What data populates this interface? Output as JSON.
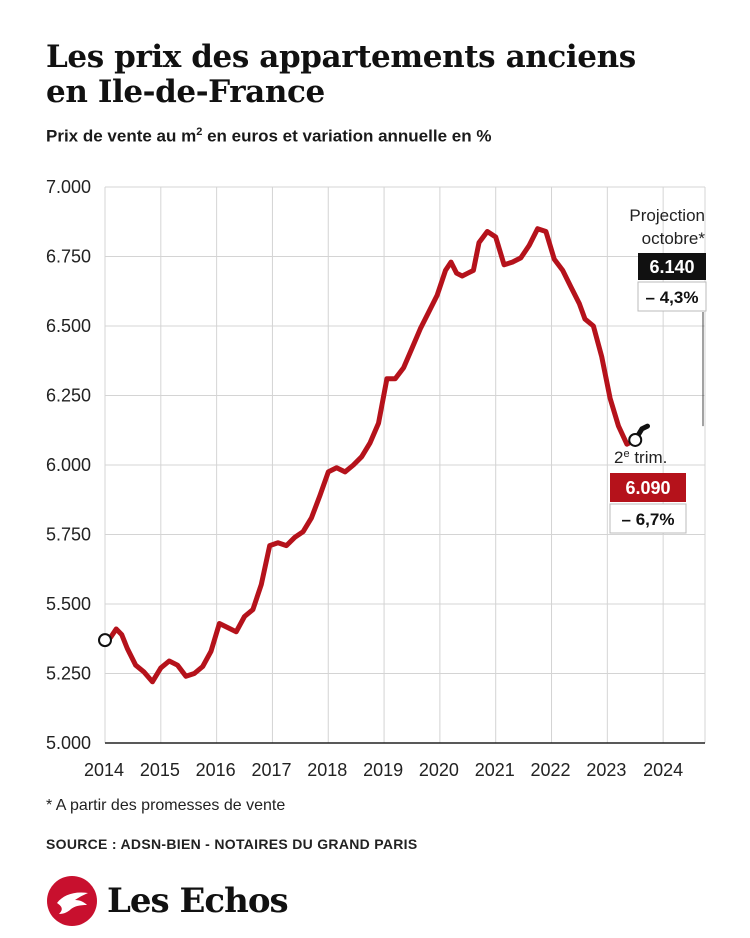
{
  "title_line1": "Les prix des appartements anciens",
  "title_line2": "en Ile-de-France",
  "subtitle_main": "Prix de vente au m",
  "subtitle_sup": "2",
  "subtitle_rest": " en euros et variation annuelle en %",
  "footnote": "* A partir des promesses de vente",
  "source": "SOURCE : ADSN-BIEN - NOTAIRES DU GRAND PARIS",
  "brand": "Les Echos",
  "colors": {
    "line": "#b5121b",
    "grid": "#d4d4d4",
    "axis": "#222222",
    "projection_box": "#111111",
    "current_box": "#b5121b"
  },
  "chart_data": {
    "type": "line",
    "title": "Les prix des appartements anciens en Ile-de-France",
    "subtitle": "Prix de vente au m² en euros et variation annuelle en %",
    "x_ticks": [
      "2014",
      "2015",
      "2016",
      "2017",
      "2018",
      "2019",
      "2020",
      "2021",
      "2022",
      "2023",
      "2024"
    ],
    "y_ticks": [
      "7.000",
      "6.750",
      "6.500",
      "6.250",
      "6.000",
      "5.750",
      "5.500",
      "5.250",
      "5.000"
    ],
    "y_tick_values": [
      7000,
      6750,
      6500,
      6250,
      6000,
      5750,
      5500,
      5250,
      5000
    ],
    "xlim": [
      2014,
      2024.75
    ],
    "ylim": [
      5000,
      7000
    ],
    "grid": true,
    "series": [
      {
        "points": [
          [
            2014.0,
            5370
          ],
          [
            2014.1,
            5380
          ],
          [
            2014.2,
            5410
          ],
          [
            2014.3,
            5390
          ],
          [
            2014.4,
            5340
          ],
          [
            2014.55,
            5280
          ],
          [
            2014.7,
            5255
          ],
          [
            2014.85,
            5220
          ],
          [
            2015.0,
            5270
          ],
          [
            2015.15,
            5295
          ],
          [
            2015.3,
            5280
          ],
          [
            2015.45,
            5240
          ],
          [
            2015.6,
            5250
          ],
          [
            2015.75,
            5275
          ],
          [
            2015.9,
            5330
          ],
          [
            2016.05,
            5430
          ],
          [
            2016.2,
            5415
          ],
          [
            2016.35,
            5400
          ],
          [
            2016.5,
            5455
          ],
          [
            2016.65,
            5480
          ],
          [
            2016.8,
            5570
          ],
          [
            2016.95,
            5710
          ],
          [
            2017.1,
            5720
          ],
          [
            2017.25,
            5710
          ],
          [
            2017.4,
            5740
          ],
          [
            2017.55,
            5760
          ],
          [
            2017.7,
            5810
          ],
          [
            2017.85,
            5890
          ],
          [
            2018.0,
            5975
          ],
          [
            2018.15,
            5990
          ],
          [
            2018.3,
            5975
          ],
          [
            2018.45,
            6000
          ],
          [
            2018.6,
            6030
          ],
          [
            2018.75,
            6080
          ],
          [
            2018.9,
            6150
          ],
          [
            2019.05,
            6310
          ],
          [
            2019.2,
            6310
          ],
          [
            2019.35,
            6350
          ],
          [
            2019.5,
            6420
          ],
          [
            2019.65,
            6490
          ],
          [
            2019.8,
            6550
          ],
          [
            2019.95,
            6610
          ],
          [
            2020.1,
            6700
          ],
          [
            2020.2,
            6730
          ],
          [
            2020.3,
            6690
          ],
          [
            2020.4,
            6680
          ],
          [
            2020.5,
            6690
          ],
          [
            2020.6,
            6700
          ],
          [
            2020.7,
            6800
          ],
          [
            2020.85,
            6840
          ],
          [
            2021.0,
            6820
          ],
          [
            2021.15,
            6720
          ],
          [
            2021.3,
            6730
          ],
          [
            2021.45,
            6745
          ],
          [
            2021.6,
            6790
          ],
          [
            2021.75,
            6850
          ],
          [
            2021.9,
            6840
          ],
          [
            2022.05,
            6740
          ],
          [
            2022.2,
            6700
          ],
          [
            2022.35,
            6640
          ],
          [
            2022.5,
            6580
          ],
          [
            2022.6,
            6525
          ],
          [
            2022.75,
            6500
          ],
          [
            2022.9,
            6390
          ],
          [
            2023.05,
            6240
          ],
          [
            2023.2,
            6140
          ],
          [
            2023.35,
            6075
          ],
          [
            2023.5,
            6090
          ]
        ]
      },
      {
        "name": "Projection",
        "points": [
          [
            2023.5,
            6090
          ],
          [
            2023.62,
            6130
          ],
          [
            2023.72,
            6140
          ]
        ]
      }
    ],
    "start_marker": [
      2014.0,
      5370
    ],
    "annotations": [
      {
        "label_line1": "Projection",
        "label_line2": "octobre*",
        "value": "6.140",
        "change": "– 4,3%",
        "at": [
          2023.72,
          6140
        ]
      },
      {
        "label_line1": "2",
        "label_sup": "e",
        "label_rest": " trim.",
        "value": "6.090",
        "change": "– 6,7%",
        "at": [
          2023.5,
          6090
        ]
      }
    ]
  }
}
